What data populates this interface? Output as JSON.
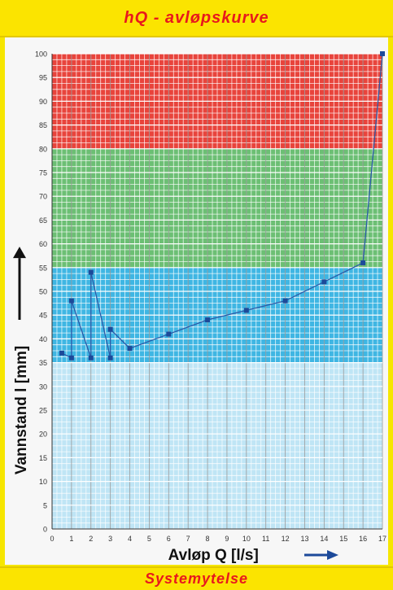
{
  "header": {
    "title": "hQ - avløpskurve"
  },
  "footer": {
    "text": "Systemytelse"
  },
  "colors": {
    "red_zone": "#e8443c",
    "green_zone": "#6cbf74",
    "blue_zone": "#3fb6e3",
    "light_blue_zone": "#bfe5f5",
    "line": "#2a5aa8",
    "marker": "#1c4a9a",
    "arrow": "#1c4a9a",
    "title_red": "#e8181d",
    "title_bg": "#fbe400"
  },
  "chart_data": {
    "type": "line",
    "title": "hQ - avløpskurve",
    "xlabel": "Avløp Q [l/s]",
    "ylabel": "Vannstand l [mm]",
    "xlim": [
      0,
      17
    ],
    "ylim": [
      0,
      100
    ],
    "x_ticks": [
      "0",
      "1",
      "2",
      "3",
      "4",
      "5",
      "6",
      "7",
      "8",
      "9",
      "10",
      "11",
      "12",
      "13",
      "14",
      "15",
      "16",
      "17"
    ],
    "y_ticks": [
      "0",
      "5",
      "10",
      "15",
      "20",
      "25",
      "30",
      "35",
      "40",
      "45",
      "50",
      "55",
      "60",
      "65",
      "70",
      "75",
      "80",
      "85",
      "90",
      "95",
      "100"
    ],
    "grid": true,
    "bands": [
      {
        "from": 0,
        "to": 35,
        "color": "light_blue_zone"
      },
      {
        "from": 35,
        "to": 55,
        "color": "blue_zone"
      },
      {
        "from": 55,
        "to": 80,
        "color": "green_zone"
      },
      {
        "from": 80,
        "to": 100,
        "color": "red_zone"
      }
    ],
    "series": [
      {
        "x": [
          0.5,
          1,
          1,
          2,
          2,
          3,
          3,
          4,
          6,
          8,
          10,
          12,
          14,
          16,
          17
        ],
        "y": [
          37,
          36,
          48,
          36,
          54,
          36,
          42,
          38,
          41,
          44,
          46,
          48,
          52,
          56,
          100
        ]
      }
    ]
  }
}
